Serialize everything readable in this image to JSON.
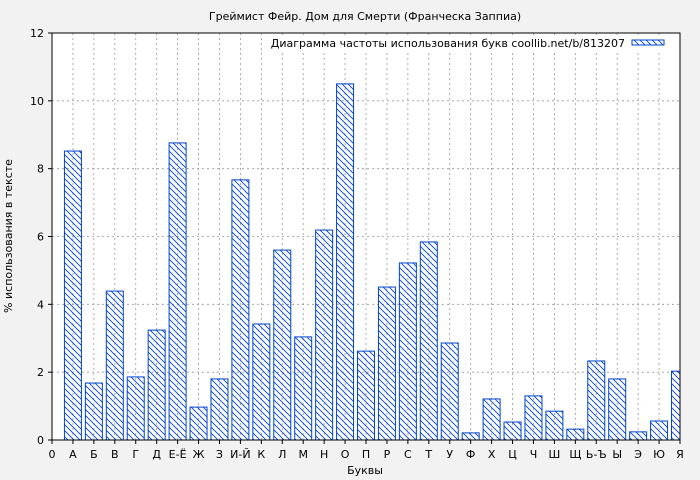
{
  "chart_data": {
    "type": "bar",
    "title": "Греймист Фейр. Дом для Смерти (Франческа Заппиа)",
    "xlabel": "Буквы",
    "ylabel": "% использования в тексте",
    "legend": {
      "label": "Диаграмма частоты использования букв coollib.net/b/813207",
      "placement": "top-right"
    },
    "x_first_tick": "0",
    "categories": [
      "А",
      "Б",
      "В",
      "Г",
      "Д",
      "Е-Ё",
      "Ж",
      "З",
      "И-Й",
      "К",
      "Л",
      "М",
      "Н",
      "О",
      "П",
      "Р",
      "С",
      "Т",
      "У",
      "Ф",
      "Х",
      "Ц",
      "Ч",
      "Ш",
      "Щ",
      "Ь-Ъ",
      "Ы",
      "Э",
      "Ю",
      "Я"
    ],
    "values": [
      8.52,
      1.68,
      4.39,
      1.86,
      3.24,
      8.76,
      0.97,
      1.8,
      7.67,
      3.42,
      5.6,
      3.04,
      6.19,
      10.5,
      2.62,
      4.51,
      5.22,
      5.84,
      2.86,
      0.21,
      1.21,
      0.53,
      1.3,
      0.85,
      0.32,
      2.33,
      1.8,
      0.24,
      0.56,
      2.03
    ],
    "ylim": [
      0,
      12
    ],
    "yticks": [
      "0",
      "2",
      "4",
      "6",
      "8",
      "10",
      "12"
    ],
    "grid": true,
    "bar_color": "#0044cc"
  }
}
